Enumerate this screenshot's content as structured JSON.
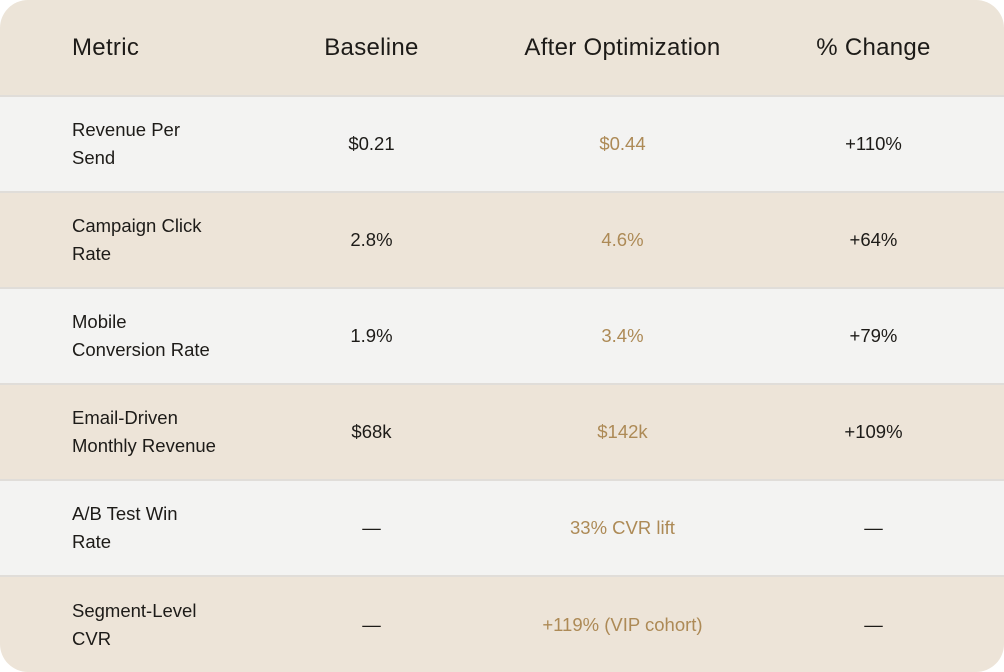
{
  "table": {
    "headers": {
      "metric": "Metric",
      "baseline": "Baseline",
      "after": "After Optimization",
      "change": "% Change"
    },
    "rows": [
      {
        "metric_lines": [
          "Revenue Per",
          "Send"
        ],
        "baseline": "$0.21",
        "after": "$0.44",
        "change": "+110%"
      },
      {
        "metric_lines": [
          "Campaign Click",
          "Rate"
        ],
        "baseline": "2.8%",
        "after": "4.6%",
        "change": "+64%"
      },
      {
        "metric_lines": [
          "Mobile",
          "Conversion Rate"
        ],
        "baseline": "1.9%",
        "after": "3.4%",
        "change": "+79%"
      },
      {
        "metric_lines": [
          "Email-Driven",
          "Monthly Revenue"
        ],
        "baseline": "$68k",
        "after": "$142k",
        "change": "+109%"
      },
      {
        "metric_lines": [
          "A/B Test Win",
          "Rate"
        ],
        "baseline": "—",
        "after": "33% CVR lift",
        "change": "—"
      },
      {
        "metric_lines": [
          "Segment-Level",
          "CVR"
        ],
        "baseline": "—",
        "after": "+119% (VIP cohort)",
        "change": "—"
      }
    ],
    "colors": {
      "header_bg": "#ece4d8",
      "row_bg": "#f3f3f2",
      "row_alt_bg": "#ede4d8",
      "accent_gold": "#ad8a56",
      "text_dark": "#1d1b18",
      "separator": "#e0ddd9"
    }
  }
}
